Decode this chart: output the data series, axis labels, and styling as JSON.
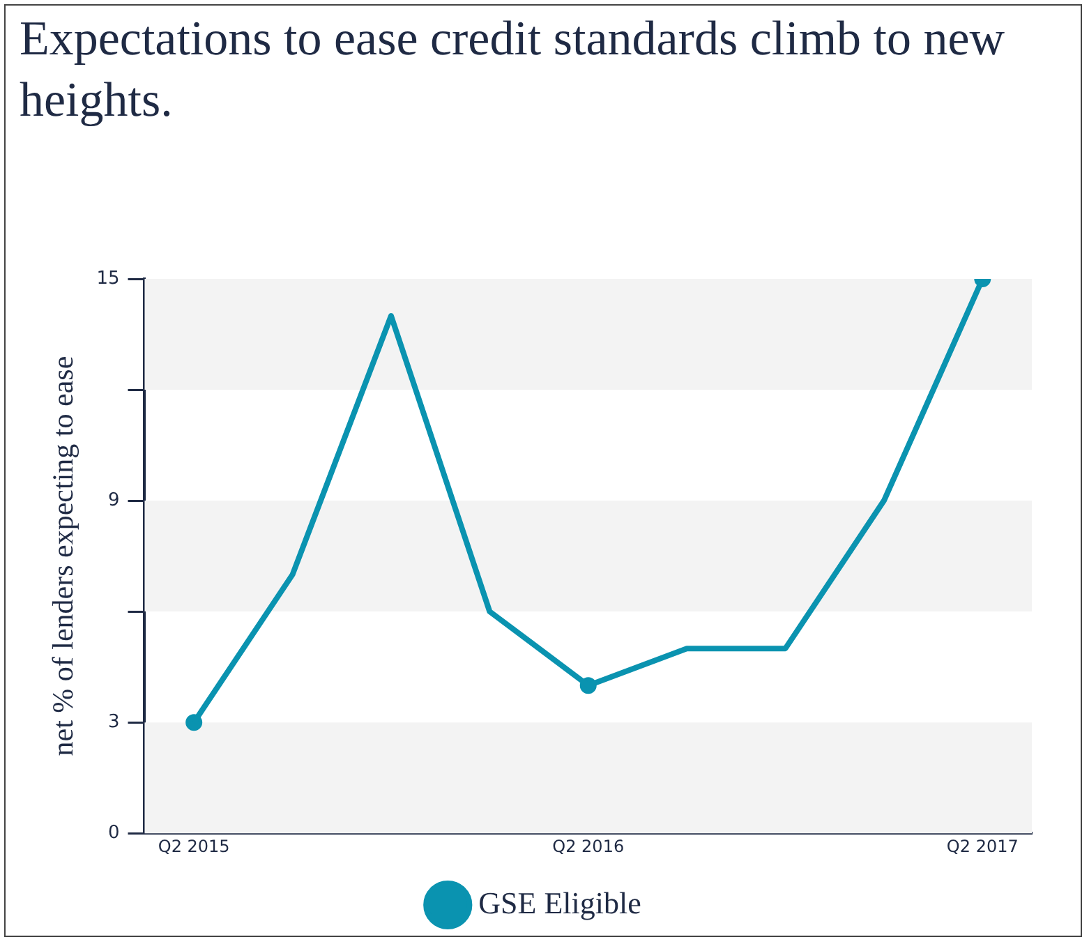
{
  "chart_data": {
    "type": "line",
    "title": "Expectations to ease credit standards climb to new heights.",
    "ylabel": "net % of lenders expecting to ease",
    "categories": [
      "Q2 2015",
      null,
      null,
      null,
      "Q2 2016",
      null,
      null,
      null,
      "Q2 2017"
    ],
    "series": [
      {
        "name": "GSE Eligible",
        "color": "#0a93b0",
        "marker": "none",
        "values": [
          3,
          7,
          14,
          6,
          4,
          5,
          5,
          9,
          15
        ]
      },
      {
        "type": "scatter",
        "color": "#0a93b0",
        "marker": "circle",
        "x": [
          "Q2 2015",
          "Q2 2016",
          "Q2 2017"
        ],
        "values": [
          3,
          4,
          15
        ]
      }
    ],
    "ylim": [
      0,
      15
    ],
    "yticks": [
      0,
      3,
      {
        "value": 6,
        "label": null
      },
      9,
      {
        "value": 12,
        "label": null
      },
      15
    ],
    "bands": [
      {
        "axis": "y",
        "from": 0,
        "to": 3,
        "color": "#f3f3f3"
      },
      {
        "axis": "y",
        "from": 6,
        "to": 9,
        "color": "#f3f3f3"
      },
      {
        "axis": "y",
        "from": 12,
        "to": 15,
        "color": "#f3f3f3"
      }
    ],
    "grid": false,
    "legend": "bottom"
  }
}
